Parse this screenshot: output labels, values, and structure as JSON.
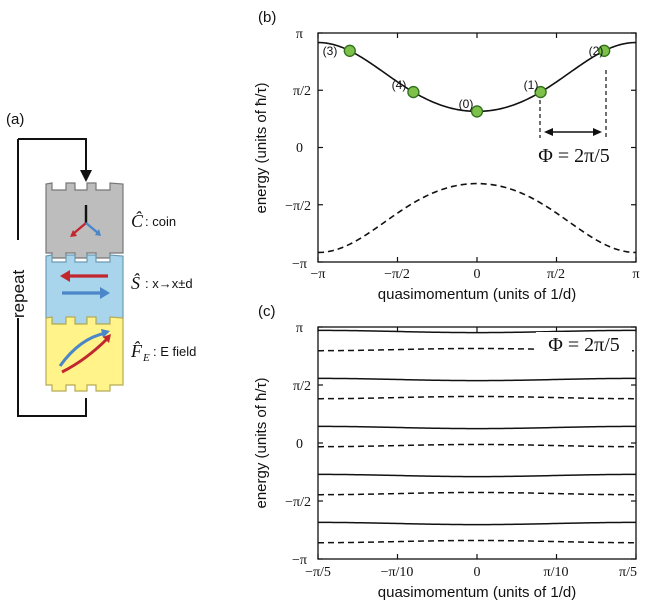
{
  "panel_a": {
    "label": "(a)",
    "repeat_label": "repeat",
    "blocks": [
      {
        "operator": "Ĉ",
        "desc": ": coin",
        "color": "#bdbdbd"
      },
      {
        "operator": "Ŝ",
        "desc": ": x→x±d",
        "color": "#a8d4ec"
      },
      {
        "operator": "F̂",
        "subscript": "E",
        "desc": ": E field",
        "color": "#fff38a"
      }
    ]
  },
  "panel_b": {
    "label": "(b)",
    "ylabel": "energy (units of ħ/τ)",
    "xlabel": "quasimomentum (units of 1/d)",
    "yticks": [
      "π",
      "π/2",
      "0",
      "−π/2",
      "−π"
    ],
    "xticks": [
      "−π",
      "−π/2",
      "0",
      "π/2",
      "π"
    ],
    "annotation": "Φ = 2π/5",
    "point_labels": [
      "(3)",
      "(4)",
      "(0)",
      "(1)",
      "(2)"
    ]
  },
  "panel_c": {
    "label": "(c)",
    "ylabel": "energy (units of ħ/τ)",
    "xlabel": "quasimomentum (units of 1/d)",
    "yticks": [
      "π",
      "π/2",
      "0",
      "−π/2",
      "−π"
    ],
    "xticks": [
      "−π/5",
      "−π/10",
      "0",
      "π/10",
      "π/5"
    ],
    "annotation": "Φ = 2π/5"
  },
  "chart_data": [
    {
      "type": "line",
      "xlim": [
        -3.1416,
        3.1416
      ],
      "ylim": [
        -3.1416,
        3.1416
      ],
      "series": [
        {
          "style": "solid",
          "x": [
            -3.1416,
            -1.5708,
            0,
            1.5708,
            3.1416
          ],
          "y": [
            2.88,
            1.8,
            0.99,
            1.8,
            2.88
          ]
        },
        {
          "style": "dashed",
          "x": [
            -3.1416,
            -1.5708,
            0,
            1.5708,
            3.1416
          ],
          "y": [
            -2.88,
            -1.8,
            -0.99,
            -1.8,
            -2.88
          ]
        }
      ],
      "points": [
        {
          "label": "(0)",
          "x": 0,
          "y": 0.99
        },
        {
          "label": "(1)",
          "x": 1.2566,
          "y": 1.56
        },
        {
          "label": "(2)",
          "x": 2.5133,
          "y": 2.64
        },
        {
          "label": "(3)",
          "x": -2.5133,
          "y": 2.64
        },
        {
          "label": "(4)",
          "x": -1.2566,
          "y": 1.56
        }
      ]
    },
    {
      "type": "line",
      "xlim": [
        -0.6283,
        0.6283
      ],
      "ylim": [
        -3.1416,
        3.1416
      ],
      "series": [
        {
          "style": "solid",
          "y_center": 3.05,
          "x": [
            -0.6283,
            0,
            0.6283
          ],
          "y": [
            3.05,
            3.05,
            3.05
          ]
        },
        {
          "style": "dashed",
          "y_center": 2.5,
          "x": [
            -0.6283,
            0,
            0.6283
          ],
          "y": [
            2.5,
            2.5,
            2.5
          ]
        },
        {
          "style": "solid",
          "y_center": 1.75,
          "x": [
            -0.6283,
            0,
            0.6283
          ],
          "y": [
            1.75,
            1.75,
            1.75
          ]
        },
        {
          "style": "dashed",
          "y_center": 1.2,
          "x": [
            -0.6283,
            0,
            0.6283
          ],
          "y": [
            1.2,
            1.2,
            1.2
          ]
        },
        {
          "style": "solid",
          "y_center": 0.45,
          "x": [
            -0.6283,
            0,
            0.6283
          ],
          "y": [
            0.45,
            0.45,
            0.45
          ]
        },
        {
          "style": "dashed",
          "y_center": -0.1,
          "x": [
            -0.6283,
            0,
            0.6283
          ],
          "y": [
            -0.1,
            -0.1,
            -0.1
          ]
        },
        {
          "style": "solid",
          "y_center": -0.85,
          "x": [
            -0.6283,
            0,
            0.6283
          ],
          "y": [
            -0.85,
            -0.85,
            -0.85
          ]
        },
        {
          "style": "dashed",
          "y_center": -1.4,
          "x": [
            -0.6283,
            0,
            0.6283
          ],
          "y": [
            -1.4,
            -1.4,
            -1.4
          ]
        },
        {
          "style": "solid",
          "y_center": -2.15,
          "x": [
            -0.6283,
            0,
            0.6283
          ],
          "y": [
            -2.15,
            -2.15,
            -2.15
          ]
        },
        {
          "style": "dashed",
          "y_center": -2.7,
          "x": [
            -0.6283,
            0,
            0.6283
          ],
          "y": [
            -2.7,
            -2.7,
            -2.7
          ]
        }
      ]
    }
  ]
}
